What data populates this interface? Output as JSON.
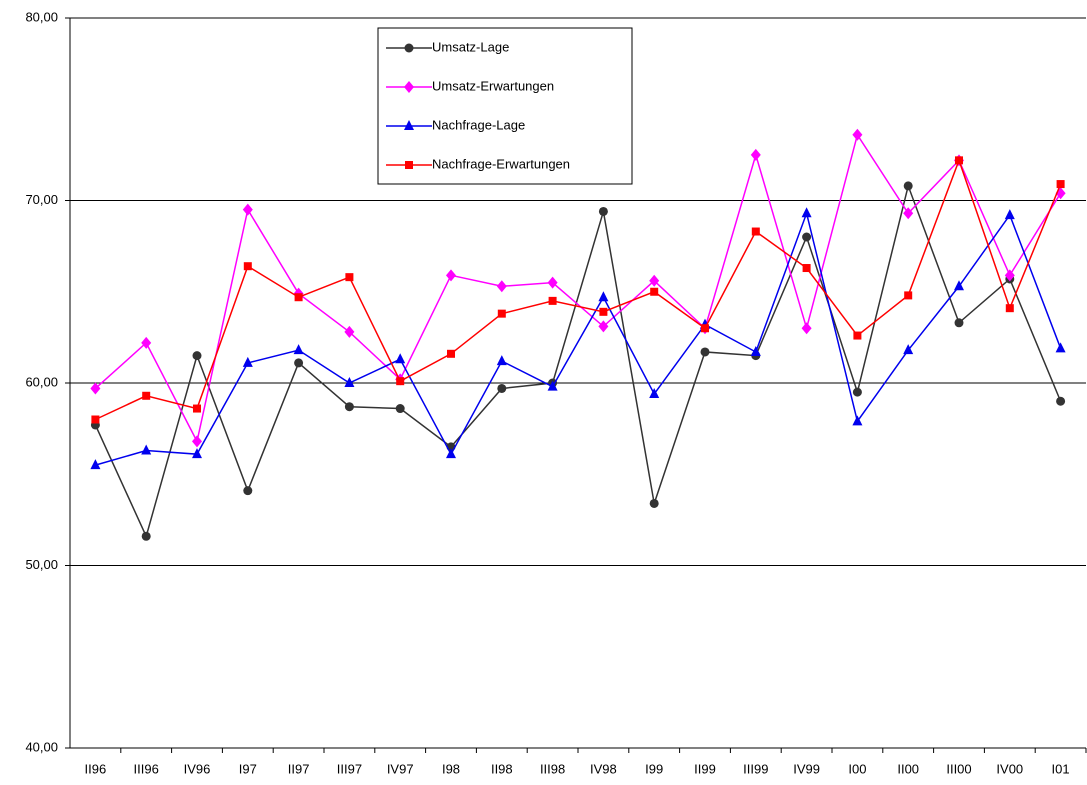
{
  "chart_data": {
    "type": "line",
    "categories": [
      "II96",
      "III96",
      "IV96",
      "I97",
      "II97",
      "III97",
      "IV97",
      "I98",
      "II98",
      "III98",
      "IV98",
      "I99",
      "II99",
      "III99",
      "IV99",
      "I00",
      "II00",
      "III00",
      "IV00",
      "I01"
    ],
    "ylim": [
      40,
      80
    ],
    "yticks": [
      {
        "value": 40,
        "label": "40,00"
      },
      {
        "value": 50,
        "label": "50,00"
      },
      {
        "value": 60,
        "label": "60,00"
      },
      {
        "value": 70,
        "label": "70,00"
      },
      {
        "value": 80,
        "label": "80,00"
      }
    ],
    "grid": true,
    "legend": "top-center",
    "series": [
      {
        "name": "Umsatz-Lage",
        "color": "#333333",
        "marker": "circle",
        "values": [
          57.7,
          51.6,
          61.5,
          54.1,
          61.1,
          58.7,
          58.6,
          56.5,
          59.7,
          60.0,
          69.4,
          53.4,
          61.7,
          61.5,
          68.0,
          59.5,
          70.8,
          63.3,
          65.7,
          59.0
        ]
      },
      {
        "name": "Umsatz-Erwartungen",
        "color": "#ff00ff",
        "marker": "diamond",
        "values": [
          59.7,
          62.2,
          56.8,
          69.5,
          64.9,
          62.8,
          60.2,
          65.9,
          65.3,
          65.5,
          63.1,
          65.6,
          63.0,
          72.5,
          63.0,
          73.6,
          69.3,
          72.2,
          65.9,
          70.4
        ]
      },
      {
        "name": "Nachfrage-Lage",
        "color": "#0000ee",
        "marker": "triangle",
        "values": [
          55.5,
          56.3,
          56.1,
          61.1,
          61.8,
          60.0,
          61.3,
          56.1,
          61.2,
          59.8,
          64.7,
          59.4,
          63.2,
          61.7,
          69.3,
          57.9,
          61.8,
          65.3,
          69.2,
          61.9
        ]
      },
      {
        "name": "Nachfrage-Erwartungen",
        "color": "#ff0000",
        "marker": "square",
        "values": [
          58.0,
          59.3,
          58.6,
          66.4,
          64.7,
          65.8,
          60.1,
          61.6,
          63.8,
          64.5,
          63.9,
          65.0,
          63.0,
          68.3,
          66.3,
          62.6,
          64.8,
          72.2,
          64.1,
          70.9
        ]
      }
    ]
  }
}
